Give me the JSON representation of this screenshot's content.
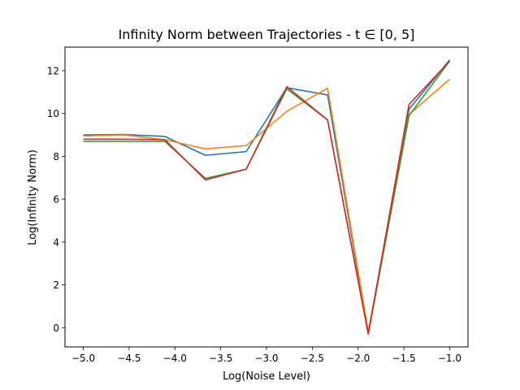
{
  "chart_data": {
    "type": "line",
    "title": "Infinity Norm between Trajectories - t ∈ [0, 5]",
    "xlabel": "Log(Noise Level)",
    "ylabel": "Log(Infinity Norm)",
    "xlim": [
      -5.2,
      -0.8
    ],
    "ylim": [
      -0.9,
      13.1
    ],
    "xticks": [
      -5.0,
      -4.5,
      -4.0,
      -3.5,
      -3.0,
      -2.5,
      -2.0,
      -1.5,
      -1.0
    ],
    "xtick_labels": [
      "−5.0",
      "−4.5",
      "−4.0",
      "−3.5",
      "−3.0",
      "−2.5",
      "−2.0",
      "−1.5",
      "−1.0"
    ],
    "yticks": [
      0,
      2,
      4,
      6,
      8,
      10,
      12
    ],
    "ytick_labels": [
      "0",
      "2",
      "4",
      "6",
      "8",
      "10",
      "12"
    ],
    "grid": false,
    "x": [
      -5.0,
      -4.556,
      -4.111,
      -3.667,
      -3.222,
      -2.778,
      -2.333,
      -1.889,
      -1.444,
      -1.0
    ],
    "series": [
      {
        "color": "#1f77b4",
        "values": [
          9.0,
          9.02,
          8.93,
          8.05,
          8.22,
          11.2,
          10.87,
          -0.25,
          10.2,
          12.5
        ]
      },
      {
        "color": "#ff7f0e",
        "values": [
          8.95,
          9.0,
          8.78,
          8.35,
          8.5,
          10.1,
          11.18,
          -0.2,
          9.95,
          11.6
        ]
      },
      {
        "color": "#2ca02c",
        "values": [
          8.7,
          8.7,
          8.7,
          6.97,
          7.4,
          11.15,
          9.7,
          -0.3,
          9.9,
          12.45
        ]
      },
      {
        "color": "#d62728",
        "values": [
          8.8,
          8.8,
          8.78,
          6.9,
          7.4,
          11.25,
          9.7,
          -0.3,
          10.42,
          12.45
        ]
      }
    ]
  }
}
